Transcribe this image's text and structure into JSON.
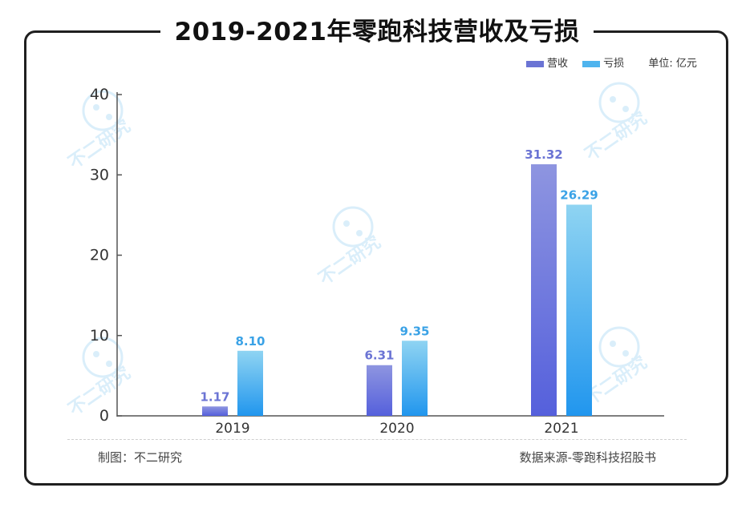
{
  "title": "2019-2021年零跑科技营收及亏损",
  "legend": {
    "unit": "单位: 亿元"
  },
  "footer": {
    "maker": "制图：不二研究",
    "source": "数据来源-零跑科技招股书"
  },
  "watermark": {
    "text": "不二研究"
  },
  "colors": {
    "revenue_top": "#8e95e0",
    "revenue_bottom": "#5560dc",
    "loss_top": "#8fd4f2",
    "loss_bottom": "#2196ee",
    "revenue_label": "#6b74d4",
    "loss_label": "#3aa2e6"
  },
  "chart_data": {
    "type": "bar",
    "categories": [
      "2019",
      "2020",
      "2021"
    ],
    "series": [
      {
        "name": "营收",
        "values": [
          1.17,
          6.31,
          31.32
        ],
        "labels": [
          "1.17",
          "6.31",
          "31.32"
        ]
      },
      {
        "name": "亏损",
        "values": [
          8.1,
          9.35,
          26.29
        ],
        "labels": [
          "8.10",
          "9.35",
          "26.29"
        ]
      }
    ],
    "ylim": [
      0,
      40
    ],
    "yticks": [
      0,
      10,
      20,
      30,
      40
    ],
    "legend_position": "top-right",
    "grid": false
  }
}
